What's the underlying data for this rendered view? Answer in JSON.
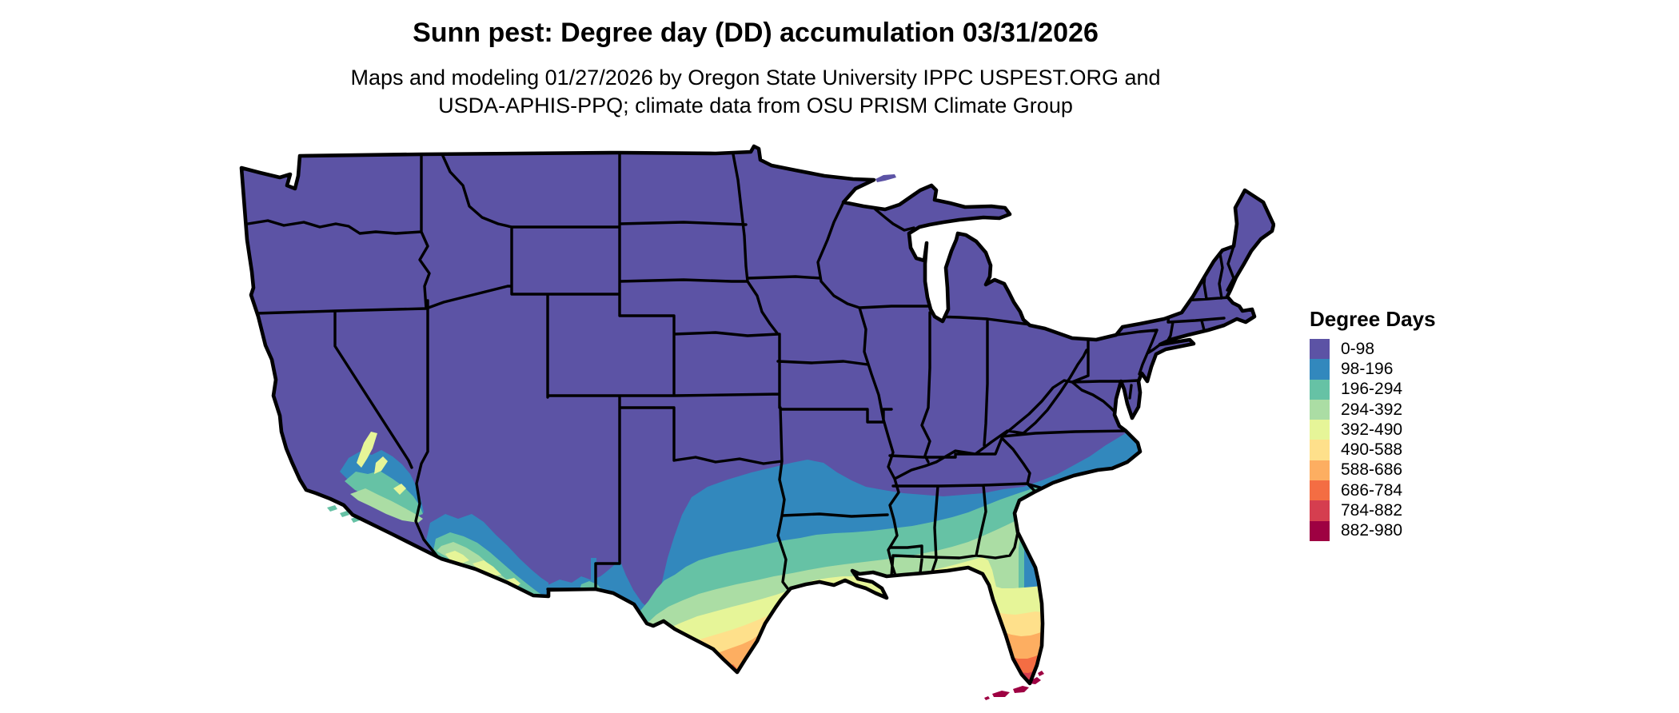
{
  "header": {
    "title": "Sunn pest: Degree day (DD) accumulation 03/31/2026",
    "subtitle_line1": "Maps and modeling 01/27/2026 by Oregon State University IPPC USPEST.ORG and",
    "subtitle_line2": "USDA-APHIS-PPQ; climate data from OSU PRISM Climate Group"
  },
  "legend": {
    "title": "Degree Days",
    "items": [
      {
        "label": "0-98",
        "color": "#5c53a5"
      },
      {
        "label": "98-196",
        "color": "#3288bd"
      },
      {
        "label": "196-294",
        "color": "#66c2a5"
      },
      {
        "label": "294-392",
        "color": "#abdda4"
      },
      {
        "label": "392-490",
        "color": "#e6f598"
      },
      {
        "label": "490-588",
        "color": "#fee08b"
      },
      {
        "label": "588-686",
        "color": "#fdae61"
      },
      {
        "label": "686-784",
        "color": "#f46d43"
      },
      {
        "label": "784-882",
        "color": "#d53e4f"
      },
      {
        "label": "882-980",
        "color": "#9e0142"
      }
    ]
  },
  "map": {
    "region": "Contiguous United States",
    "variable": "Degree day (DD) accumulation",
    "date_shown": "03/31/2026",
    "base_bin": "0-98",
    "base_color": "#5c53a5",
    "border_color": "#000000",
    "background_color": "#ffffff"
  }
}
